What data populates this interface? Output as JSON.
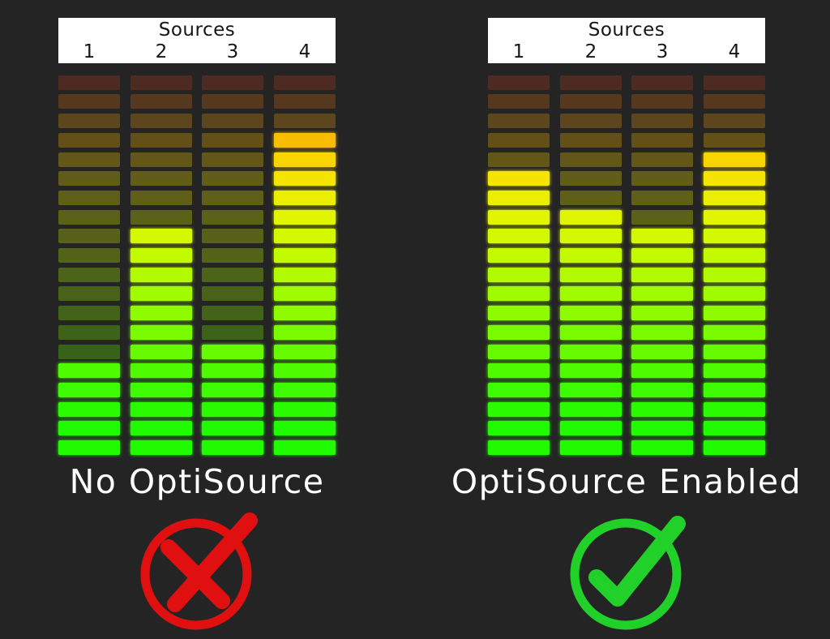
{
  "panels": [
    {
      "id": "no-optisource",
      "header": {
        "title": "Sources",
        "numbers": [
          "1",
          "2",
          "3",
          "4"
        ]
      },
      "meter_levels": [
        5,
        12,
        6,
        17
      ],
      "caption": "No OptiSource",
      "status": {
        "icon": "x-mark-icon",
        "color": "#e01010"
      }
    },
    {
      "id": "optisource-enabled",
      "header": {
        "title": "Sources",
        "numbers": [
          "1",
          "2",
          "3",
          "4"
        ]
      },
      "meter_levels": [
        15,
        13,
        12,
        16
      ],
      "caption": "OptiSource Enabled",
      "status": {
        "icon": "check-mark-icon",
        "color": "#22d02a"
      }
    }
  ],
  "segments_per_meter": 20,
  "meter_palette": [
    "#21fb00",
    "#21fb00",
    "#2bfb00",
    "#3dfb00",
    "#4ffb00",
    "#66fb00",
    "#7afb00",
    "#8efb00",
    "#a0fb00",
    "#b2fa00",
    "#c4fa00",
    "#d4f800",
    "#e2f500",
    "#ecee00",
    "#f4e400",
    "#f8d400",
    "#f8bc00",
    "#e89a10",
    "#cf6a18",
    "#b54020"
  ]
}
